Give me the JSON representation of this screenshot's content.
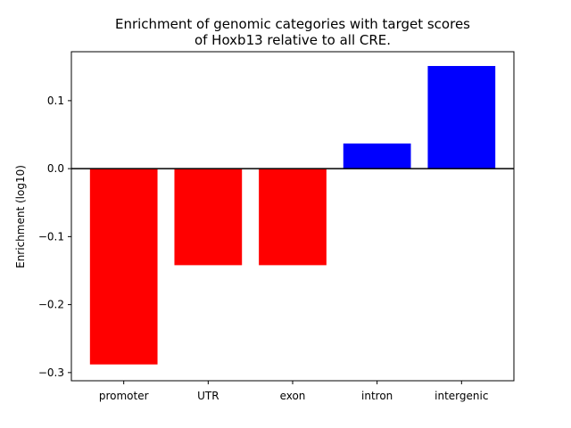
{
  "chart_data": {
    "type": "bar",
    "title_lines": [
      "Enrichment of genomic categories with target scores",
      "of Hoxb13 relative to all CRE."
    ],
    "xlabel": "",
    "ylabel": "Enrichment (log10)",
    "categories": [
      "promoter",
      "UTR",
      "exon",
      "intron",
      "intergenic"
    ],
    "values": [
      -0.288,
      -0.142,
      -0.142,
      0.037,
      0.151
    ],
    "colors": [
      "#ff0000",
      "#ff0000",
      "#ff0000",
      "#0000ff",
      "#0000ff"
    ],
    "ylim": [
      -0.312,
      0.172
    ],
    "yticks": [
      0.1,
      0.0,
      -0.1,
      -0.2,
      -0.3
    ],
    "ytick_labels": [
      "0.1",
      "0.0",
      "−0.1",
      "−0.2",
      "−0.3"
    ],
    "zero_line": true,
    "grid": false
  }
}
